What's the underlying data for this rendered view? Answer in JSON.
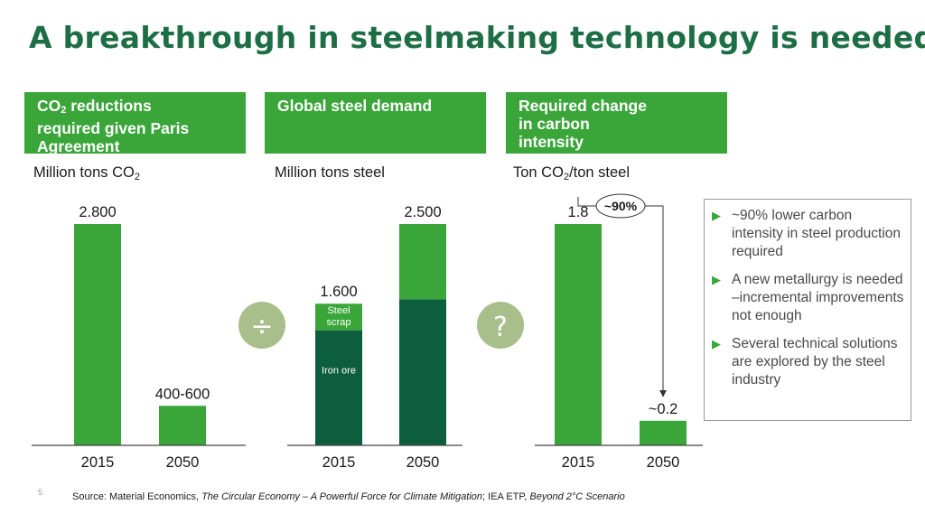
{
  "title": "A breakthrough in steelmaking technology is needed",
  "headers": {
    "co2": {
      "line1_pre": "CO",
      "line1_sub": "2",
      "line1_post": " reductions",
      "line2": "required given Paris",
      "line3": "Agreement"
    },
    "demand": {
      "line1": "Global steel demand"
    },
    "intensity": {
      "line1": "Required change",
      "line2": "in carbon",
      "line3": "intensity"
    }
  },
  "units": {
    "co2": {
      "pre": "Million tons CO",
      "sub": "2"
    },
    "demand": {
      "text": "Million tons steel"
    },
    "intensity": {
      "pre": "Ton CO",
      "sub": "2",
      "post": "/ton steel"
    }
  },
  "operators": {
    "divide": "÷",
    "question": "?"
  },
  "notes": [
    "~90% lower carbon intensity in steel production required",
    "A new metallurgy is needed –incremental improvements not enough",
    "Several technical solutions are explored by the steel industry"
  ],
  "source": {
    "p1": "Source: Material Economics, ",
    "i1": "The Circular Economy – A Powerful Force for Climate Mitigation",
    "p2": "; IEA ETP, ",
    "i2": "Beyond 2°C Scenario"
  },
  "page_number": "5",
  "colors": {
    "green": "#3aa63a",
    "dark_green": "#0d5e3e",
    "title": "#1e6e45",
    "circle": "#a9bf8b"
  },
  "chart_data": [
    {
      "type": "bar",
      "title": "CO2 reductions required given Paris Agreement",
      "ylabel": "Million tons CO2",
      "categories": [
        "2015",
        "2050"
      ],
      "values": [
        2800,
        500
      ],
      "value_labels": [
        "2.800",
        "400-600"
      ],
      "ylim": [
        0,
        2800
      ]
    },
    {
      "type": "bar",
      "stacked": true,
      "title": "Global steel demand",
      "ylabel": "Million tons steel",
      "categories": [
        "2015",
        "2050"
      ],
      "totals": [
        1600,
        2500
      ],
      "value_labels": [
        "1.600",
        "2.500"
      ],
      "series": [
        {
          "name": "Iron ore",
          "values": [
            1300,
            1650
          ]
        },
        {
          "name": "Steel scrap",
          "values": [
            300,
            850
          ]
        }
      ],
      "ylim": [
        0,
        2500
      ]
    },
    {
      "type": "bar",
      "title": "Required change in carbon intensity",
      "ylabel": "Ton CO2/ton steel",
      "categories": [
        "2015",
        "2050"
      ],
      "values": [
        1.8,
        0.2
      ],
      "value_labels": [
        "1.8",
        "~0.2"
      ],
      "annotation": "~90%",
      "ylim": [
        0,
        1.8
      ]
    }
  ]
}
